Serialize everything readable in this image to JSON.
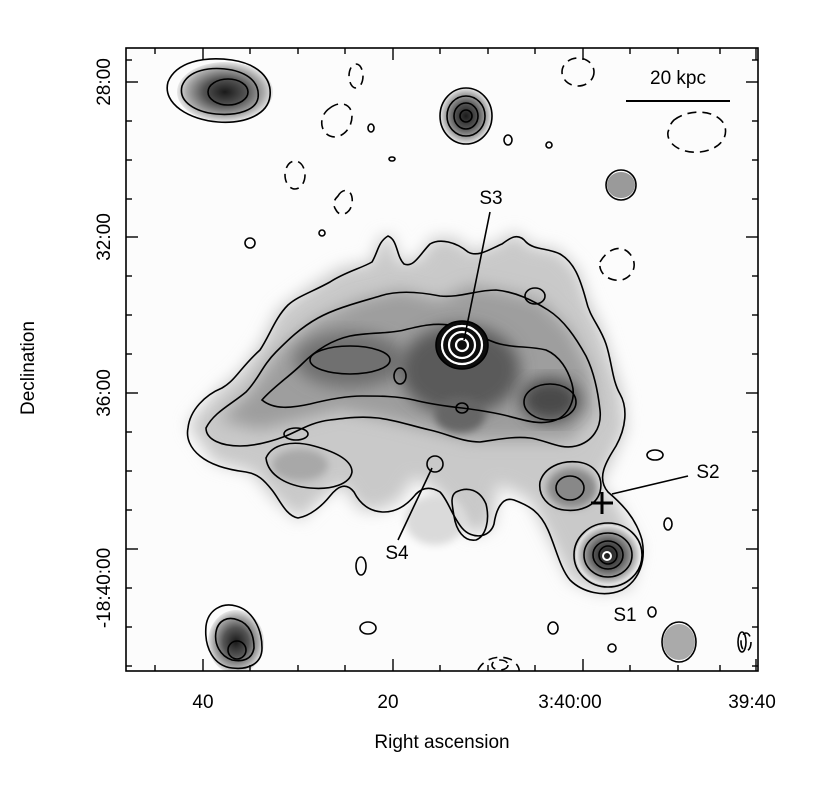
{
  "axes": {
    "xlabel": "Right ascension",
    "ylabel": "Declination",
    "xticks": [
      "40",
      "20",
      "3:40:00",
      "39:40"
    ],
    "yticks": [
      "28:00",
      "32:00",
      "36:00",
      "-18:40:00"
    ]
  },
  "scalebar": {
    "label": "20 kpc"
  },
  "sources": {
    "s1": "S1",
    "s2": "S2",
    "s3": "S3",
    "s4": "S4"
  }
}
